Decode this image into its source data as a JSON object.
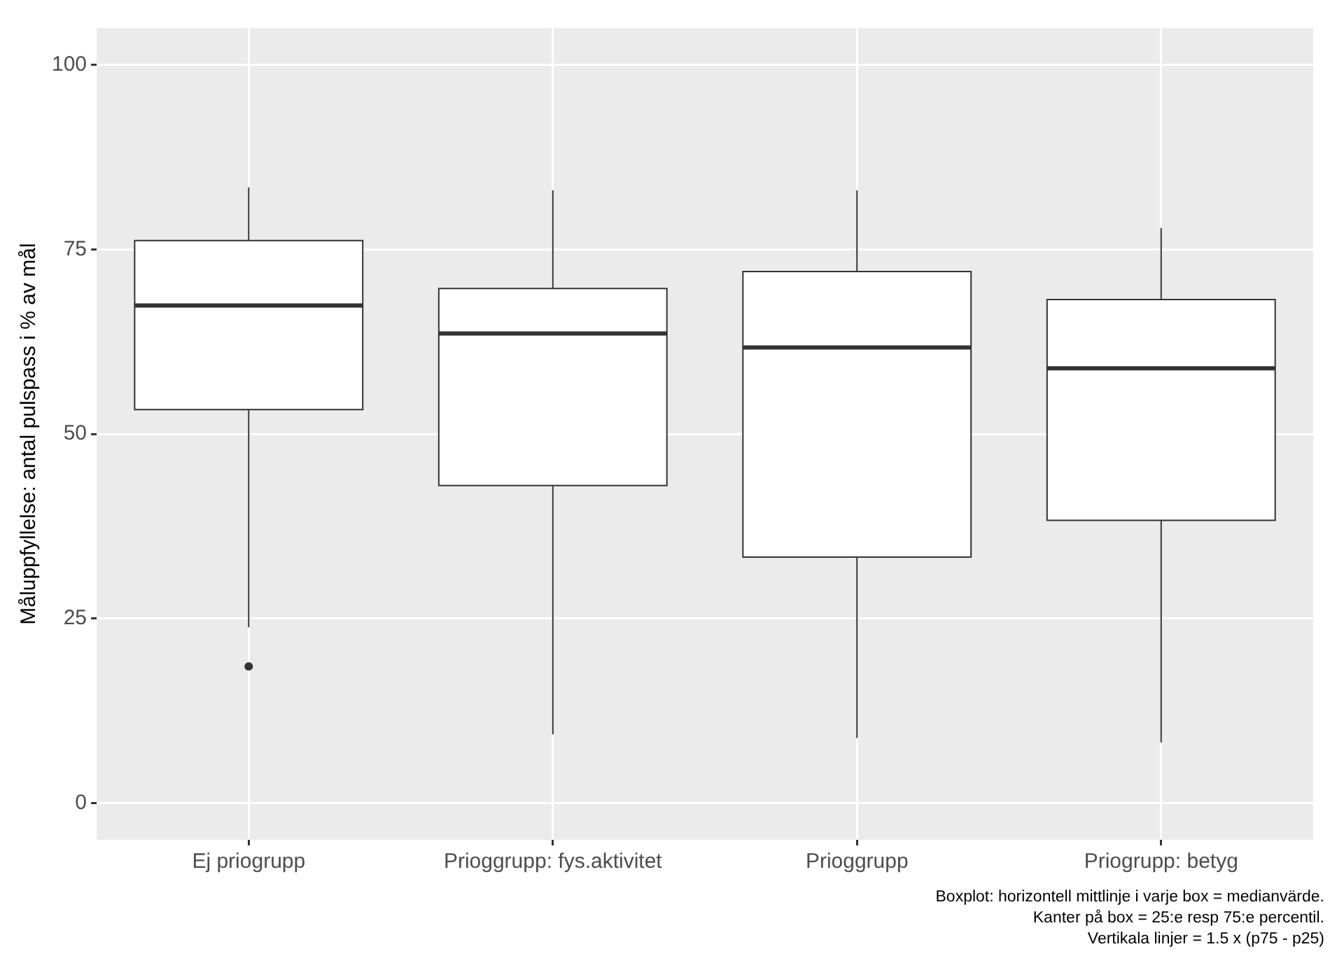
{
  "chart_data": {
    "type": "box",
    "ylabel": "Måluppfyllelse: antal pulspass i % av mål",
    "categories": [
      "Ej priogrupp",
      "Prioggrupp: fys.aktivitet",
      "Prioggrupp",
      "Priogrupp: betyg"
    ],
    "boxes": [
      {
        "low": 23.8,
        "q1": 53.3,
        "median": 67.4,
        "q3": 76.2,
        "high": 83.4,
        "outliers": [
          18.5
        ]
      },
      {
        "low": 9.3,
        "q1": 43,
        "median": 63.6,
        "q3": 69.7,
        "high": 83
      },
      {
        "low": 8.8,
        "q1": 33.3,
        "median": 61.7,
        "q3": 72,
        "high": 83
      },
      {
        "low": 8.2,
        "q1": 38.3,
        "median": 58.9,
        "q3": 68.2,
        "high": 77.9
      }
    ],
    "ylim": [
      -5,
      105
    ],
    "yticks": [
      0,
      25,
      50,
      75,
      100
    ],
    "grid": true,
    "annotations": [
      "Boxplot: horizontell mittlinje i varje box = medianvärde.",
      "Kanter på box = 25:e resp 75:e percentil.",
      "Vertikala linjer = 1.5 x (p75 - p25)"
    ]
  }
}
